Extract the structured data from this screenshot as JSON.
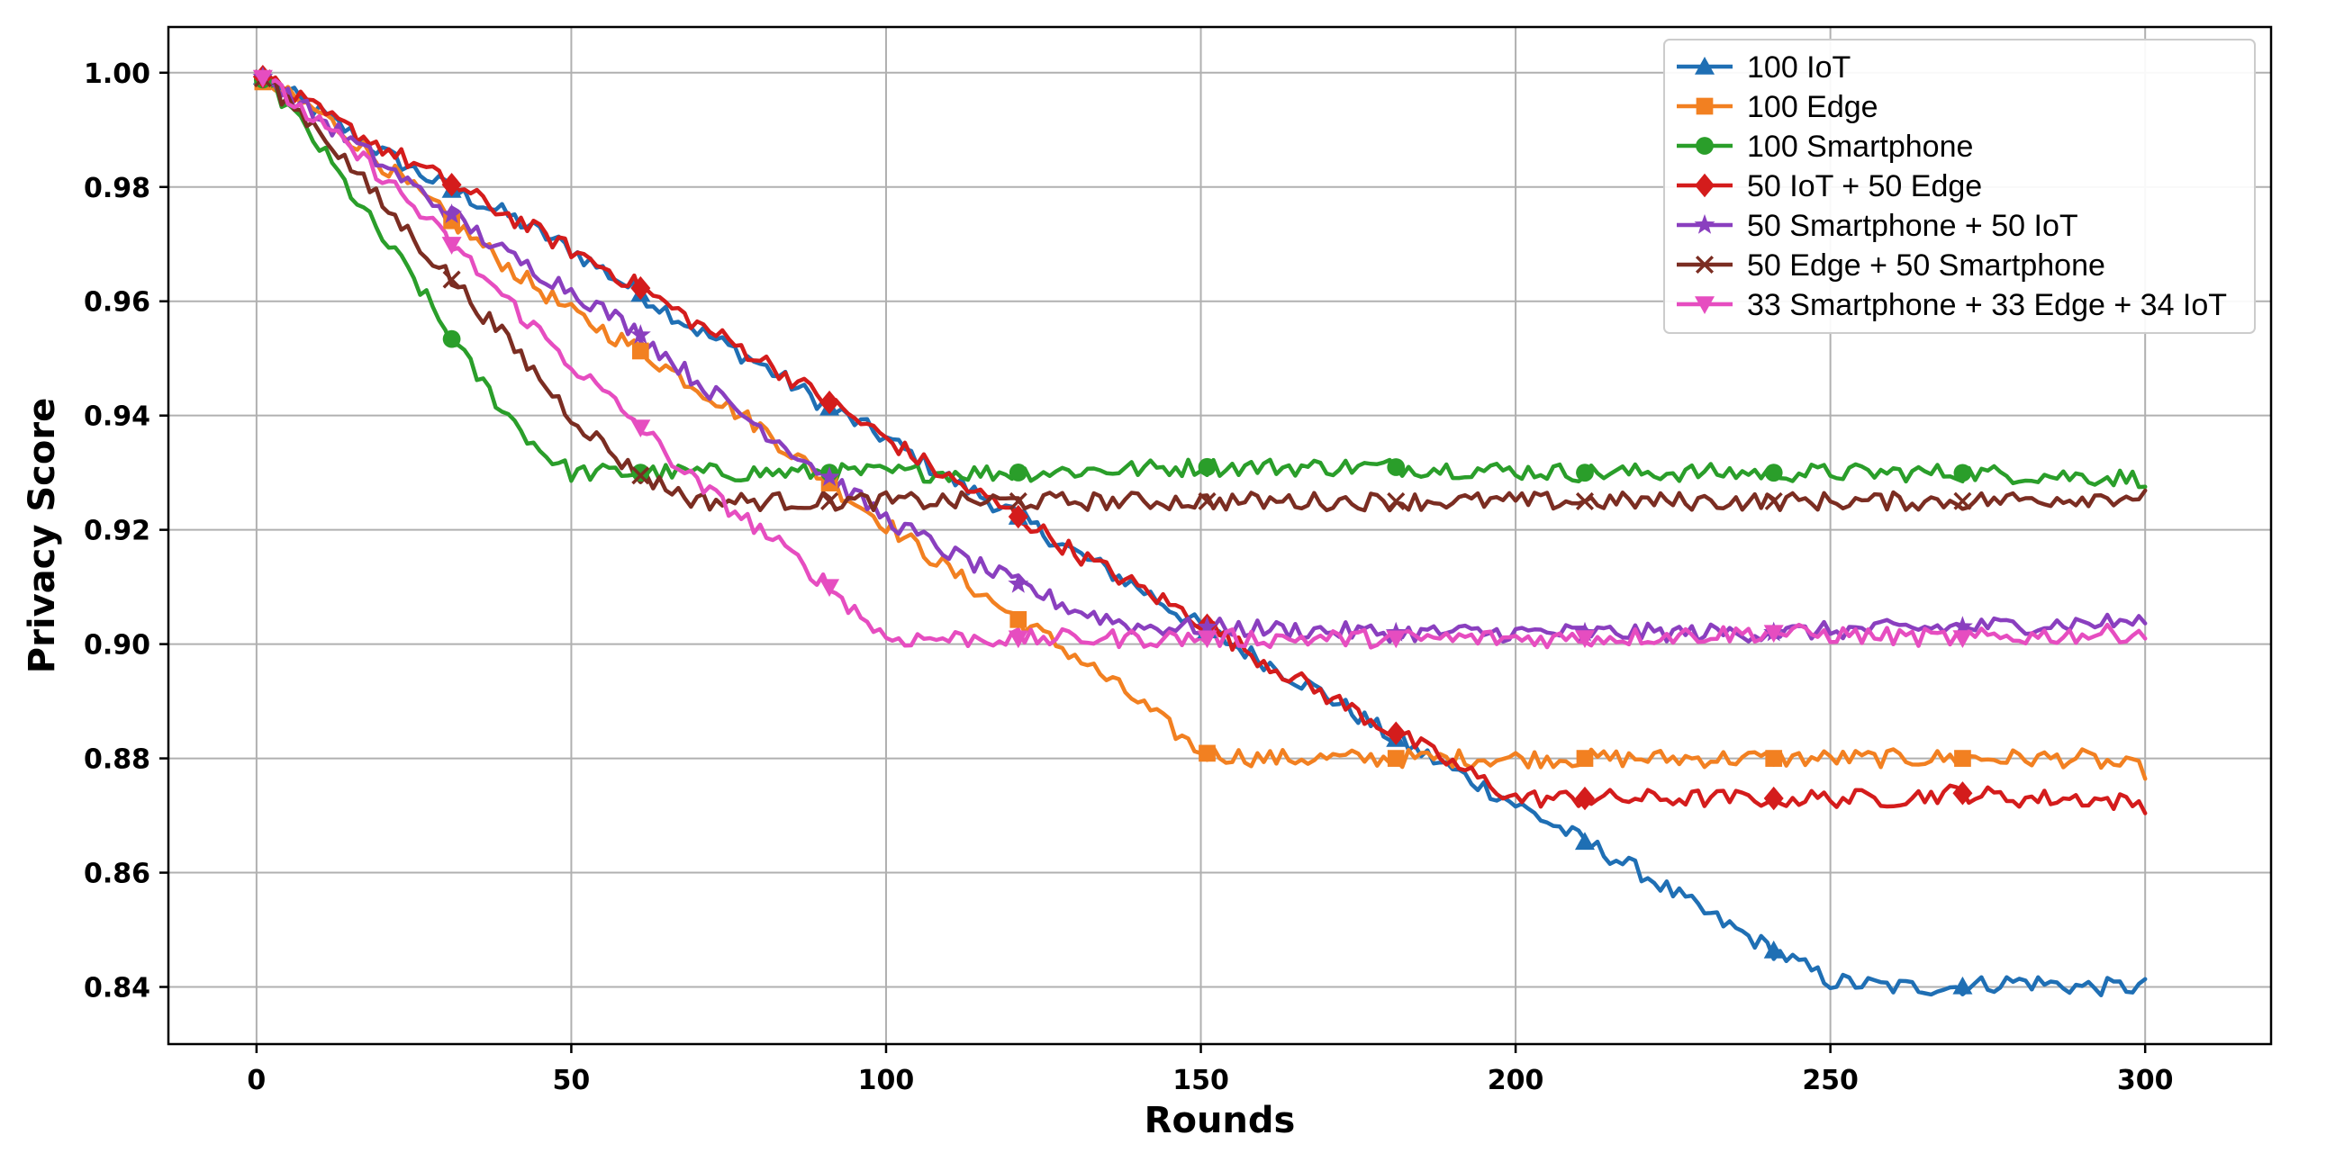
{
  "chart_data": {
    "type": "line",
    "title": "",
    "xlabel": "Rounds",
    "ylabel": "Privacy Score",
    "xlim": [
      -14,
      320
    ],
    "ylim": [
      0.83,
      1.008
    ],
    "xticks": [
      0,
      50,
      100,
      150,
      200,
      250,
      300
    ],
    "yticks": [
      0.84,
      0.86,
      0.88,
      0.9,
      0.92,
      0.94,
      0.96,
      0.98,
      1.0
    ],
    "ytick_labels": [
      "0.84",
      "0.86",
      "0.88",
      "0.90",
      "0.92",
      "0.94",
      "0.96",
      "0.98",
      "1.00"
    ],
    "grid": true,
    "legend_position": "top-right",
    "marker_x": [
      1,
      31,
      61,
      91,
      121,
      151,
      181,
      211,
      241,
      271
    ],
    "series": [
      {
        "name": "100 IoT",
        "color": "#1f6fb4",
        "marker": "triangle-up",
        "x": [
          0,
          10,
          20,
          30,
          40,
          50,
          60,
          70,
          80,
          90,
          100,
          110,
          120,
          130,
          140,
          150,
          160,
          170,
          180,
          190,
          200,
          210,
          220,
          230,
          240,
          250,
          260,
          270,
          280,
          290,
          300
        ],
        "y": [
          1.0,
          0.993,
          0.986,
          0.98,
          0.975,
          0.969,
          0.962,
          0.955,
          0.949,
          0.942,
          0.936,
          0.929,
          0.923,
          0.916,
          0.91,
          0.903,
          0.897,
          0.891,
          0.884,
          0.878,
          0.872,
          0.866,
          0.86,
          0.853,
          0.847,
          0.841,
          0.84,
          0.84,
          0.841,
          0.84,
          0.84
        ]
      },
      {
        "name": "100 Edge",
        "color": "#f28021",
        "marker": "square",
        "x": [
          0,
          10,
          20,
          30,
          40,
          50,
          60,
          70,
          80,
          90,
          100,
          110,
          120,
          130,
          140,
          150,
          160,
          170,
          180,
          190,
          200,
          210,
          220,
          230,
          240,
          250,
          260,
          270,
          280,
          290,
          300
        ],
        "y": [
          0.999,
          0.993,
          0.984,
          0.975,
          0.966,
          0.958,
          0.952,
          0.945,
          0.938,
          0.929,
          0.921,
          0.913,
          0.905,
          0.898,
          0.89,
          0.881,
          0.88,
          0.88,
          0.88,
          0.88,
          0.88,
          0.88,
          0.88,
          0.88,
          0.88,
          0.88,
          0.88,
          0.88,
          0.88,
          0.88,
          0.878
        ]
      },
      {
        "name": "100 Smartphone",
        "color": "#2a9e2a",
        "marker": "circle",
        "x": [
          0,
          5,
          10,
          15,
          20,
          25,
          30,
          35,
          40,
          45,
          50,
          55,
          60,
          70,
          80,
          90,
          100,
          120,
          150,
          180,
          210,
          240,
          270,
          300
        ],
        "y": [
          1.0,
          0.994,
          0.987,
          0.979,
          0.971,
          0.964,
          0.955,
          0.947,
          0.94,
          0.934,
          0.93,
          0.93,
          0.93,
          0.93,
          0.93,
          0.93,
          0.93,
          0.93,
          0.931,
          0.931,
          0.93,
          0.93,
          0.93,
          0.929
        ]
      },
      {
        "name": "50 IoT + 50 Edge",
        "color": "#d41c1c",
        "marker": "diamond",
        "x": [
          0,
          10,
          20,
          30,
          40,
          50,
          60,
          70,
          80,
          90,
          100,
          110,
          120,
          130,
          140,
          150,
          160,
          170,
          180,
          190,
          200,
          210,
          220,
          230,
          240,
          250,
          260,
          270,
          280,
          290,
          300
        ],
        "y": [
          1.0,
          0.993,
          0.987,
          0.981,
          0.975,
          0.969,
          0.963,
          0.956,
          0.95,
          0.943,
          0.936,
          0.929,
          0.923,
          0.916,
          0.91,
          0.904,
          0.897,
          0.891,
          0.885,
          0.879,
          0.873,
          0.873,
          0.873,
          0.873,
          0.873,
          0.873,
          0.873,
          0.874,
          0.873,
          0.873,
          0.872
        ]
      },
      {
        "name": "50 Smartphone + 50 IoT",
        "color": "#8a3fbf",
        "marker": "star",
        "x": [
          0,
          10,
          20,
          30,
          40,
          50,
          60,
          70,
          80,
          90,
          100,
          110,
          120,
          130,
          140,
          150,
          180,
          210,
          240,
          270,
          300
        ],
        "y": [
          1.0,
          0.992,
          0.984,
          0.976,
          0.968,
          0.962,
          0.955,
          0.946,
          0.938,
          0.93,
          0.922,
          0.916,
          0.911,
          0.906,
          0.903,
          0.903,
          0.902,
          0.902,
          0.902,
          0.903,
          0.904
        ]
      },
      {
        "name": "50 Edge + 50 Smartphone",
        "color": "#7b2d22",
        "marker": "x",
        "x": [
          0,
          10,
          20,
          30,
          40,
          50,
          60,
          70,
          80,
          90,
          100,
          120,
          150,
          180,
          210,
          240,
          270,
          300
        ],
        "y": [
          1.0,
          0.99,
          0.977,
          0.965,
          0.953,
          0.94,
          0.93,
          0.925,
          0.925,
          0.925,
          0.925,
          0.925,
          0.925,
          0.925,
          0.925,
          0.925,
          0.925,
          0.926
        ]
      },
      {
        "name": "33 Smartphone + 33 Edge + 34 IoT",
        "color": "#e64dc0",
        "marker": "triangle-down",
        "x": [
          0,
          10,
          20,
          30,
          40,
          50,
          60,
          70,
          80,
          90,
          95,
          100,
          110,
          150,
          180,
          210,
          240,
          270,
          300
        ],
        "y": [
          1.0,
          0.991,
          0.982,
          0.971,
          0.96,
          0.949,
          0.939,
          0.928,
          0.92,
          0.911,
          0.906,
          0.901,
          0.901,
          0.901,
          0.901,
          0.901,
          0.902,
          0.901,
          0.902
        ]
      }
    ]
  }
}
